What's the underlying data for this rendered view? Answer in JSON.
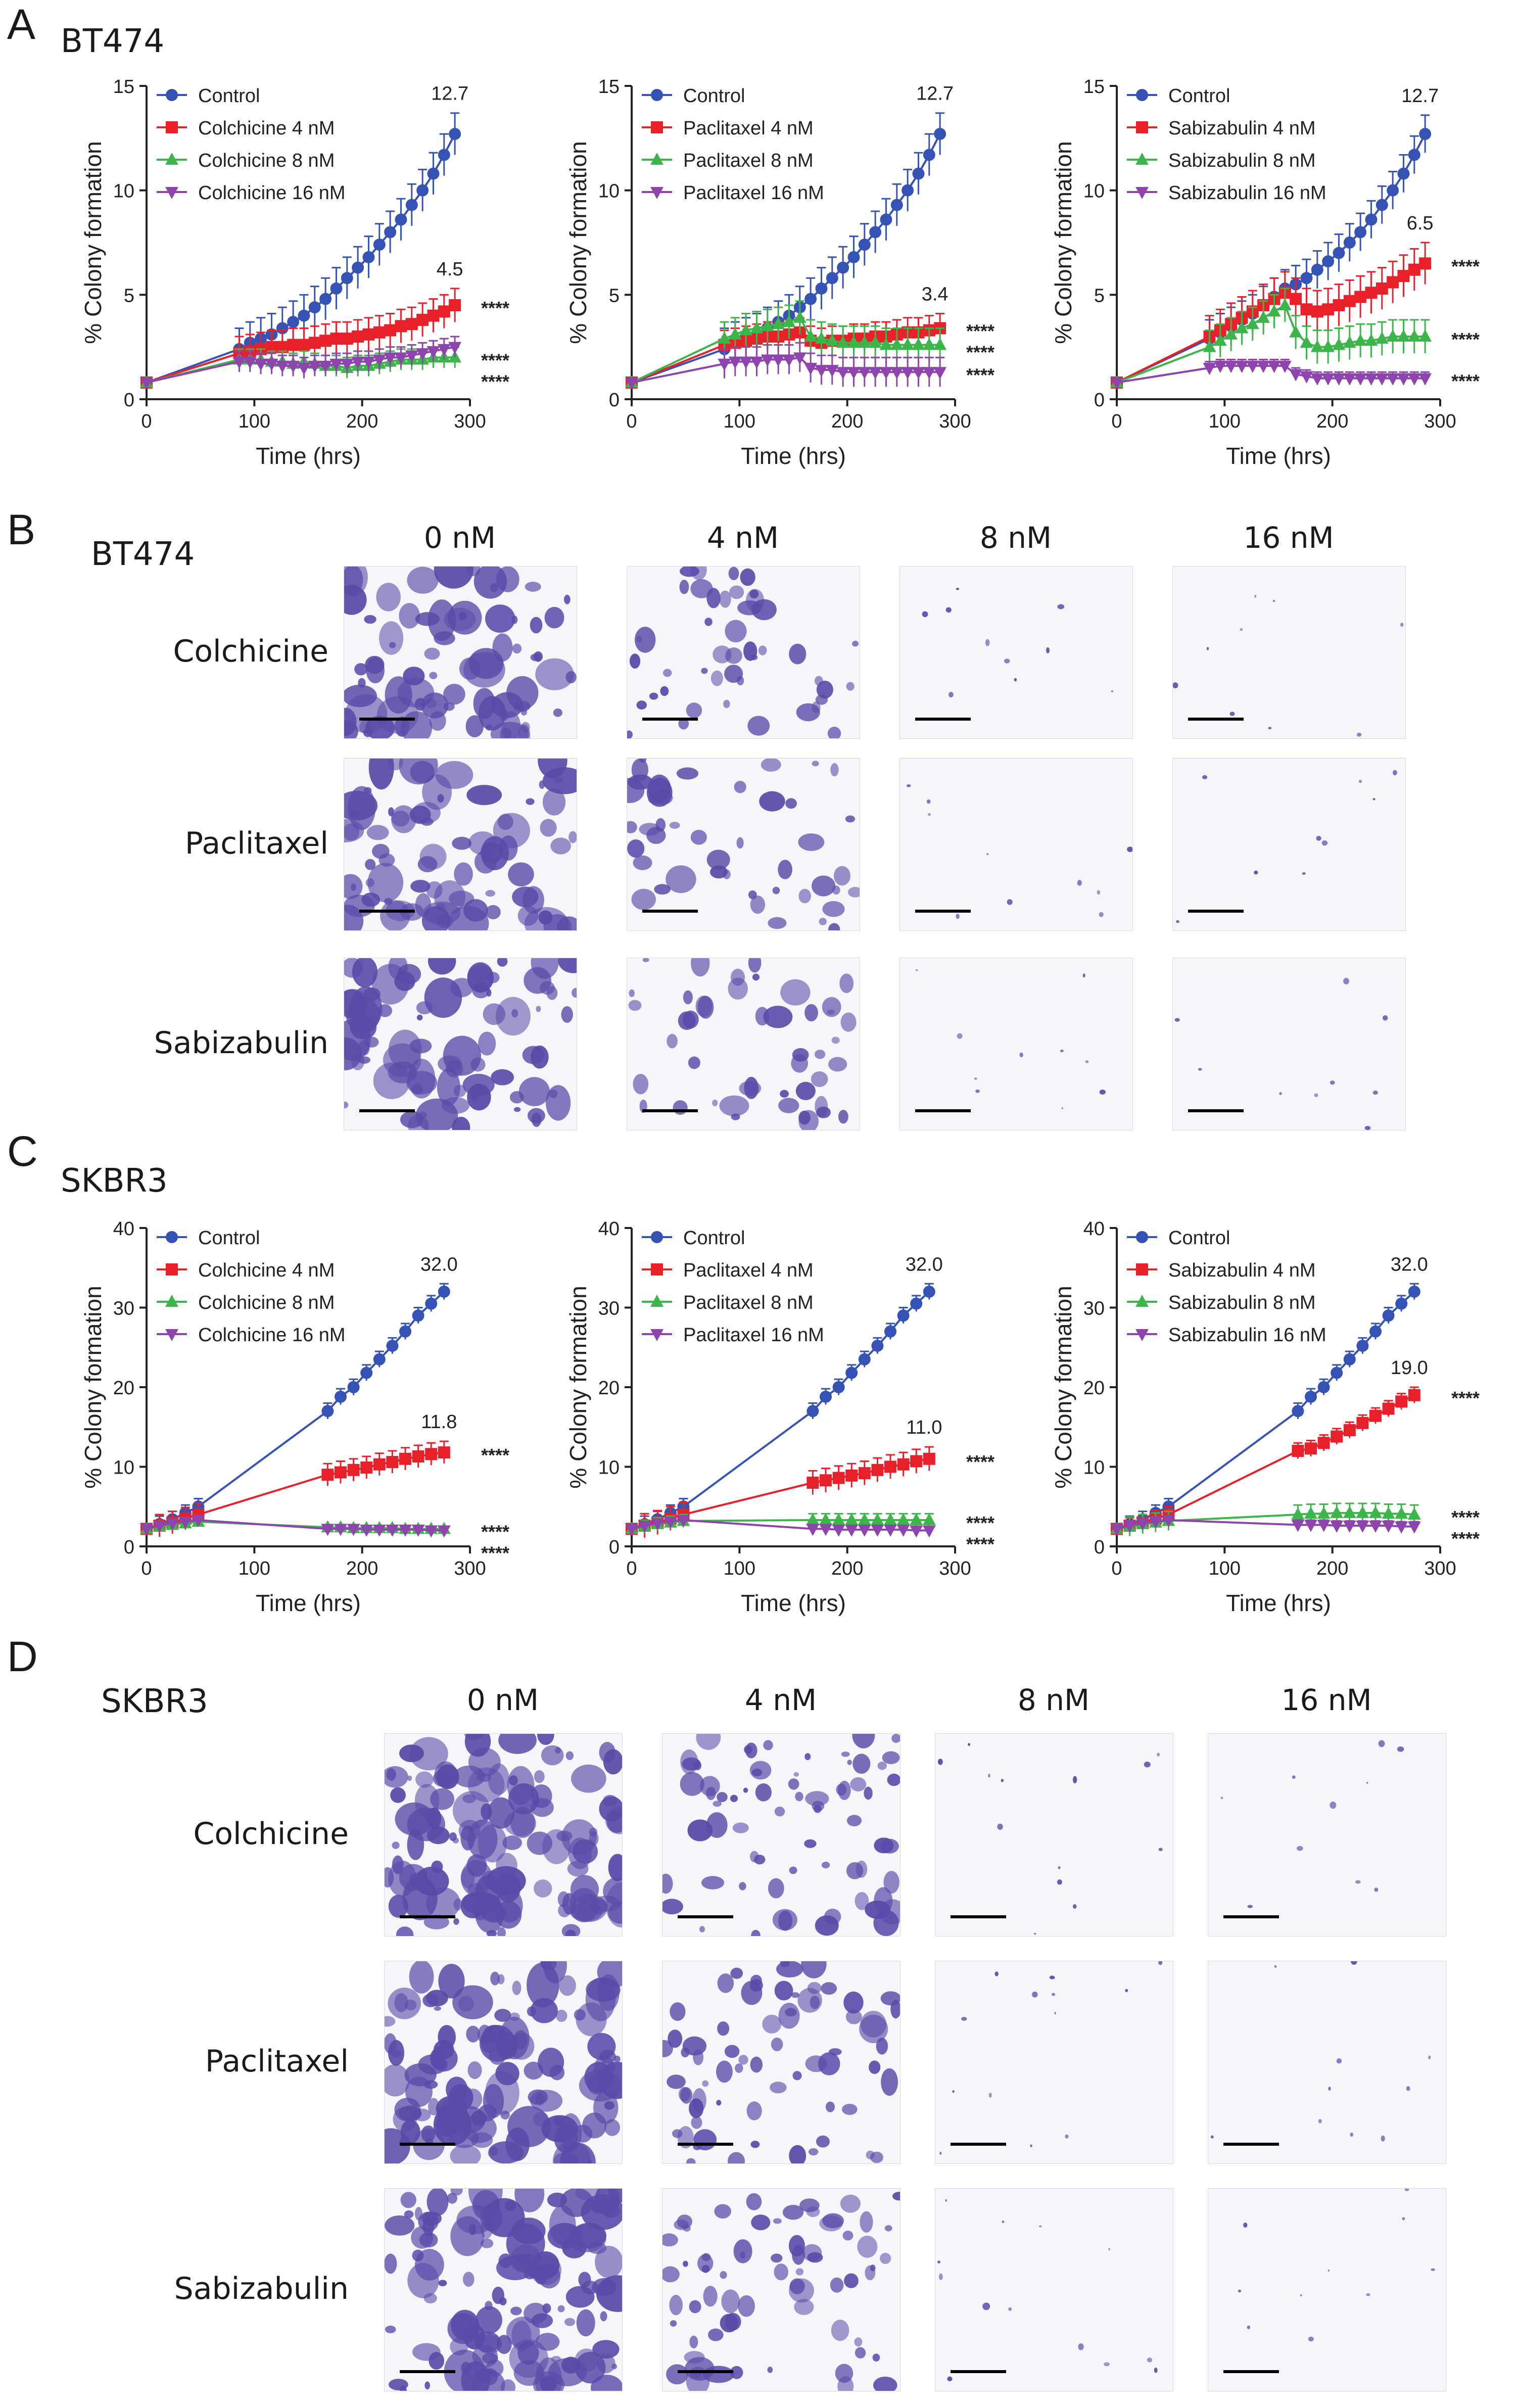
{
  "panels": {
    "A": {
      "letter": "A",
      "cell": "BT474"
    },
    "B": {
      "letter": "B",
      "cell": "BT474"
    },
    "C": {
      "letter": "C",
      "cell": "SKBR3"
    },
    "D": {
      "letter": "D",
      "cell": "SKBR3"
    }
  },
  "micrographs": {
    "columns": [
      "0 nM",
      "4 nM",
      "8 nM",
      "16 nM"
    ],
    "rows": [
      "Colchicine",
      "Paclitaxel",
      "Sabizabulin"
    ],
    "density": [
      1.0,
      0.55,
      0.06,
      0.04
    ]
  },
  "colors": {
    "control": "#3552b5",
    "dose4": "#e8202a",
    "dose8": "#3cb54a",
    "dose16": "#8e44ad",
    "stain": "#5a4aa8"
  },
  "chart_data": [
    {
      "id": "A1",
      "type": "line",
      "ylabel": "% Colony formation",
      "xlabel": "Time (hrs)",
      "xlim": [
        0,
        300
      ],
      "ylim": [
        0,
        15
      ],
      "xticks": [
        0,
        100,
        200,
        300
      ],
      "yticks": [
        0,
        5,
        10,
        15
      ],
      "x": [
        0,
        86,
        96,
        106,
        116,
        126,
        136,
        146,
        156,
        166,
        176,
        186,
        196,
        206,
        216,
        226,
        236,
        246,
        256,
        266,
        276,
        286
      ],
      "series": [
        {
          "name": "Control",
          "values": [
            0.8,
            2.4,
            2.7,
            2.9,
            3.1,
            3.4,
            3.7,
            4.0,
            4.4,
            4.8,
            5.3,
            5.8,
            6.3,
            6.8,
            7.4,
            8.0,
            8.6,
            9.3,
            10.0,
            10.8,
            11.7,
            12.7
          ],
          "err": 1.0
        },
        {
          "name": "Colchicine 4 nM",
          "values": [
            0.8,
            2.2,
            2.3,
            2.4,
            2.5,
            2.5,
            2.6,
            2.6,
            2.7,
            2.8,
            2.9,
            2.9,
            3.0,
            3.1,
            3.2,
            3.3,
            3.5,
            3.6,
            3.8,
            4.0,
            4.2,
            4.5
          ],
          "err": 0.8
        },
        {
          "name": "Colchicine 8 nM",
          "values": [
            0.8,
            1.9,
            1.9,
            1.9,
            1.8,
            1.8,
            1.7,
            1.8,
            1.7,
            1.6,
            1.6,
            1.5,
            1.6,
            1.6,
            1.7,
            1.8,
            1.9,
            1.9,
            1.9,
            2.0,
            2.0,
            2.0
          ],
          "err": 0.5
        },
        {
          "name": "Colchicine 16 nM",
          "values": [
            0.8,
            1.8,
            1.8,
            1.7,
            1.7,
            1.6,
            1.6,
            1.5,
            1.6,
            1.6,
            1.7,
            1.7,
            1.8,
            1.8,
            1.9,
            2.0,
            2.0,
            2.1,
            2.2,
            2.3,
            2.4,
            2.5
          ],
          "err": 0.5
        }
      ],
      "annotations": [
        {
          "text": "12.7",
          "series": 0
        },
        {
          "text": "4.5",
          "series": 1
        }
      ],
      "stars": [
        "****",
        "****",
        "****"
      ],
      "star_series": [
        1,
        2,
        3
      ]
    },
    {
      "id": "A2",
      "type": "line",
      "ylabel": "% Colony formation",
      "xlabel": "Time (hrs)",
      "xlim": [
        0,
        300
      ],
      "ylim": [
        0,
        15
      ],
      "xticks": [
        0,
        100,
        200,
        300
      ],
      "yticks": [
        0,
        5,
        10,
        15
      ],
      "x": [
        0,
        86,
        96,
        106,
        116,
        126,
        136,
        146,
        156,
        166,
        176,
        186,
        196,
        206,
        216,
        226,
        236,
        246,
        256,
        266,
        276,
        286
      ],
      "series": [
        {
          "name": "Control",
          "values": [
            0.8,
            2.4,
            2.7,
            2.9,
            3.1,
            3.4,
            3.7,
            4.0,
            4.4,
            4.8,
            5.3,
            5.8,
            6.3,
            6.8,
            7.4,
            8.0,
            8.6,
            9.3,
            10.0,
            10.8,
            11.7,
            12.7
          ],
          "err": 1.0
        },
        {
          "name": "Paclitaxel 4 nM",
          "values": [
            0.8,
            2.6,
            2.7,
            2.8,
            2.9,
            3.0,
            3.0,
            3.1,
            3.2,
            2.8,
            2.7,
            2.8,
            2.8,
            2.9,
            2.9,
            3.0,
            3.0,
            3.1,
            3.2,
            3.2,
            3.3,
            3.4
          ],
          "err": 0.7
        },
        {
          "name": "Paclitaxel 8 nM",
          "values": [
            0.8,
            2.9,
            3.1,
            3.3,
            3.4,
            3.5,
            3.6,
            3.7,
            3.9,
            3.0,
            2.9,
            2.8,
            2.7,
            2.7,
            2.7,
            2.7,
            2.6,
            2.6,
            2.6,
            2.6,
            2.6,
            2.6
          ],
          "err": 0.8
        },
        {
          "name": "Paclitaxel 16 nM",
          "values": [
            0.8,
            1.7,
            1.8,
            1.8,
            1.8,
            1.9,
            1.9,
            1.9,
            2.0,
            1.5,
            1.4,
            1.4,
            1.3,
            1.3,
            1.3,
            1.3,
            1.3,
            1.3,
            1.3,
            1.3,
            1.3,
            1.3
          ],
          "err": 0.7
        }
      ],
      "annotations": [
        {
          "text": "12.7",
          "series": 0
        },
        {
          "text": "3.4",
          "series": 1
        }
      ],
      "stars": [
        "****",
        "****",
        "****"
      ],
      "star_series": [
        1,
        2,
        3
      ]
    },
    {
      "id": "A3",
      "type": "line",
      "ylabel": "% Colony formation",
      "xlabel": "Time (hrs)",
      "xlim": [
        0,
        300
      ],
      "ylim": [
        0,
        15
      ],
      "xticks": [
        0,
        100,
        200,
        300
      ],
      "yticks": [
        0,
        5,
        10,
        15
      ],
      "x": [
        0,
        86,
        96,
        106,
        116,
        126,
        136,
        146,
        156,
        166,
        176,
        186,
        196,
        206,
        216,
        226,
        236,
        246,
        256,
        266,
        276,
        286
      ],
      "series": [
        {
          "name": "Control",
          "values": [
            0.8,
            2.9,
            3.2,
            3.5,
            3.8,
            4.1,
            4.5,
            4.9,
            5.3,
            5.5,
            5.8,
            6.2,
            6.6,
            7.0,
            7.5,
            8.0,
            8.6,
            9.3,
            10.0,
            10.8,
            11.7,
            12.7
          ],
          "err": 0.9
        },
        {
          "name": "Sabizabulin 4 nM",
          "values": [
            0.8,
            3.0,
            3.3,
            3.6,
            3.9,
            4.2,
            4.5,
            4.8,
            5.1,
            4.8,
            4.3,
            4.2,
            4.3,
            4.5,
            4.7,
            4.9,
            5.1,
            5.3,
            5.6,
            5.9,
            6.2,
            6.5
          ],
          "err": 1.0
        },
        {
          "name": "Sabizabulin 8 nM",
          "values": [
            0.8,
            2.5,
            2.8,
            3.1,
            3.4,
            3.6,
            3.9,
            4.2,
            4.5,
            3.2,
            2.7,
            2.5,
            2.5,
            2.6,
            2.7,
            2.8,
            2.8,
            2.9,
            3.0,
            3.0,
            3.0,
            3.0
          ],
          "err": 0.8
        },
        {
          "name": "Sabizabulin 16 nM",
          "values": [
            0.8,
            1.5,
            1.6,
            1.6,
            1.6,
            1.6,
            1.6,
            1.6,
            1.6,
            1.2,
            1.1,
            1.0,
            1.0,
            1.0,
            1.0,
            1.0,
            1.0,
            1.0,
            1.0,
            1.0,
            1.0,
            1.0
          ],
          "err": 0.3
        }
      ],
      "annotations": [
        {
          "text": "12.7",
          "series": 0
        },
        {
          "text": "6.5",
          "series": 1
        }
      ],
      "stars": [
        "****",
        "****",
        "****"
      ],
      "star_series": [
        1,
        2,
        3
      ]
    },
    {
      "id": "C1",
      "type": "line",
      "ylabel": "% Colony formation",
      "xlabel": "Time (hrs)",
      "xlim": [
        0,
        300
      ],
      "ylim": [
        0,
        40
      ],
      "xticks": [
        0,
        100,
        200,
        300
      ],
      "yticks": [
        0,
        10,
        20,
        30,
        40
      ],
      "x": [
        0,
        12,
        24,
        36,
        48,
        168,
        180,
        192,
        204,
        216,
        228,
        240,
        252,
        264,
        276
      ],
      "series": [
        {
          "name": "Control",
          "values": [
            2.2,
            2.8,
            3.4,
            4.2,
            5.0,
            17.0,
            18.8,
            20.0,
            21.8,
            23.5,
            25.2,
            27.0,
            29.0,
            30.5,
            32.0
          ],
          "err": 1.0
        },
        {
          "name": "Colchicine 4 nM",
          "values": [
            2.2,
            2.6,
            3.0,
            3.5,
            4.0,
            9.0,
            9.3,
            9.6,
            9.9,
            10.3,
            10.6,
            11.0,
            11.3,
            11.6,
            11.8
          ],
          "err": 1.4
        },
        {
          "name": "Colchicine 8 nM",
          "values": [
            2.2,
            2.5,
            2.7,
            2.9,
            3.1,
            2.4,
            2.4,
            2.3,
            2.3,
            2.3,
            2.3,
            2.2,
            2.2,
            2.2,
            2.2
          ],
          "err": 0.3
        },
        {
          "name": "Colchicine 16 nM",
          "values": [
            2.2,
            2.6,
            2.9,
            3.1,
            3.3,
            2.2,
            2.2,
            2.2,
            2.1,
            2.1,
            2.1,
            2.1,
            2.1,
            2.0,
            2.0
          ],
          "err": 0.3
        }
      ],
      "annotations": [
        {
          "text": "32.0",
          "series": 0
        },
        {
          "text": "11.8",
          "series": 1
        }
      ],
      "stars": [
        "****",
        "****",
        "****"
      ],
      "star_series": [
        1,
        2,
        3
      ]
    },
    {
      "id": "C2",
      "type": "line",
      "ylabel": "% Colony formation",
      "xlabel": "Time (hrs)",
      "xlim": [
        0,
        300
      ],
      "ylim": [
        0,
        40
      ],
      "xticks": [
        0,
        100,
        200,
        300
      ],
      "yticks": [
        0,
        10,
        20,
        30,
        40
      ],
      "x": [
        0,
        12,
        24,
        36,
        48,
        168,
        180,
        192,
        204,
        216,
        228,
        240,
        252,
        264,
        276
      ],
      "series": [
        {
          "name": "Control",
          "values": [
            2.2,
            2.8,
            3.4,
            4.2,
            5.0,
            17.0,
            18.8,
            20.0,
            21.8,
            23.5,
            25.2,
            27.0,
            29.0,
            30.5,
            32.0
          ],
          "err": 1.0
        },
        {
          "name": "Paclitaxel 4 nM",
          "values": [
            2.2,
            2.6,
            3.0,
            3.5,
            4.0,
            8.0,
            8.3,
            8.6,
            8.9,
            9.2,
            9.6,
            10.0,
            10.3,
            10.7,
            11.0
          ],
          "err": 1.5
        },
        {
          "name": "Paclitaxel 8 nM",
          "values": [
            2.2,
            2.5,
            2.8,
            3.0,
            3.2,
            3.3,
            3.3,
            3.3,
            3.3,
            3.3,
            3.3,
            3.3,
            3.3,
            3.3,
            3.3
          ],
          "err": 0.8
        },
        {
          "name": "Paclitaxel 16 nM",
          "values": [
            2.2,
            2.6,
            2.9,
            3.1,
            3.3,
            2.2,
            2.2,
            2.1,
            2.1,
            2.1,
            2.1,
            2.1,
            2.1,
            2.0,
            2.0
          ],
          "err": 0.5
        }
      ],
      "annotations": [
        {
          "text": "32.0",
          "series": 0
        },
        {
          "text": "11.0",
          "series": 1
        }
      ],
      "stars": [
        "****",
        "****",
        "****"
      ],
      "star_series": [
        1,
        2,
        3
      ]
    },
    {
      "id": "C3",
      "type": "line",
      "ylabel": "% Colony formation",
      "xlabel": "Time (hrs)",
      "xlim": [
        0,
        300
      ],
      "ylim": [
        0,
        40
      ],
      "xticks": [
        0,
        100,
        200,
        300
      ],
      "yticks": [
        0,
        10,
        20,
        30,
        40
      ],
      "x": [
        0,
        12,
        24,
        36,
        48,
        168,
        180,
        192,
        204,
        216,
        228,
        240,
        252,
        264,
        276
      ],
      "series": [
        {
          "name": "Control",
          "values": [
            2.2,
            2.8,
            3.4,
            4.2,
            5.0,
            17.0,
            18.8,
            20.0,
            21.8,
            23.5,
            25.2,
            27.0,
            29.0,
            30.5,
            32.0
          ],
          "err": 1.0
        },
        {
          "name": "Sabizabulin 4 nM",
          "values": [
            2.2,
            2.6,
            3.0,
            3.5,
            4.0,
            12.0,
            12.3,
            13.0,
            13.8,
            14.6,
            15.5,
            16.4,
            17.3,
            18.2,
            19.0
          ],
          "err": 1.0
        },
        {
          "name": "Sabizabulin 8 nM",
          "values": [
            2.2,
            2.5,
            2.8,
            3.0,
            3.2,
            4.0,
            4.1,
            4.1,
            4.2,
            4.2,
            4.2,
            4.2,
            4.1,
            4.1,
            4.0
          ],
          "err": 1.2
        },
        {
          "name": "Sabizabulin 16 nM",
          "values": [
            2.2,
            2.6,
            2.9,
            3.1,
            3.3,
            2.7,
            2.7,
            2.7,
            2.6,
            2.6,
            2.6,
            2.6,
            2.6,
            2.5,
            2.5
          ],
          "err": 0.6
        }
      ],
      "annotations": [
        {
          "text": "32.0",
          "series": 0
        },
        {
          "text": "19.0",
          "series": 1
        }
      ],
      "stars": [
        "****",
        "****",
        "****"
      ],
      "star_series": [
        1,
        2,
        3
      ]
    }
  ]
}
